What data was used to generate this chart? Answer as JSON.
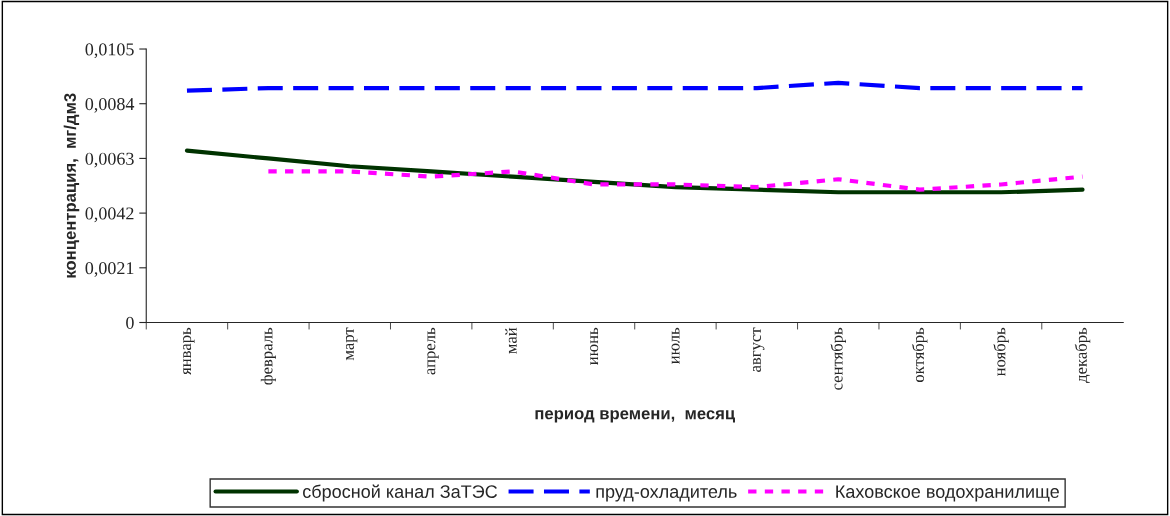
{
  "chart_data": {
    "type": "line",
    "xlabel": "период времени,  месяц",
    "ylabel": "концентрация,  мг/дм3",
    "categories": [
      "январь",
      "февраль",
      "март",
      "апрель",
      "май",
      "июнь",
      "июль",
      "август",
      "сентябрь",
      "октябрь",
      "ноябрь",
      "декабрь"
    ],
    "series": [
      {
        "name": "сбросной канал ЗаТЭС",
        "color": "#003300",
        "line_style": "solid",
        "values": [
          0.0066,
          0.0063,
          0.006,
          0.0058,
          0.0056,
          0.0054,
          0.0052,
          0.0051,
          0.005,
          0.005,
          0.005,
          0.0051
        ]
      },
      {
        "name": "пруд-охладитель",
        "color": "#0000ff",
        "line_style": "dashed",
        "values": [
          0.0089,
          0.009,
          0.009,
          0.009,
          0.009,
          0.009,
          0.009,
          0.009,
          0.0092,
          0.009,
          0.009,
          0.009
        ]
      },
      {
        "name": "Каховское водохранилище",
        "color": "#ff00ff",
        "line_style": "dotted",
        "values": [
          null,
          0.0058,
          0.0058,
          0.0056,
          0.0058,
          0.0053,
          0.0053,
          0.0052,
          0.0055,
          0.0051,
          0.0053,
          0.0056
        ]
      }
    ],
    "ylim": [
      0,
      0.0105
    ],
    "yticks": [
      {
        "value": 0,
        "label": "0"
      },
      {
        "value": 0.0021,
        "label": "0,0021"
      },
      {
        "value": 0.0042,
        "label": "0,0042"
      },
      {
        "value": 0.0063,
        "label": "0,0063"
      },
      {
        "value": 0.0084,
        "label": "0,0084"
      },
      {
        "value": 0.0105,
        "label": "0,0105"
      }
    ],
    "grid": false,
    "legend": "bottom",
    "marker": "none"
  }
}
